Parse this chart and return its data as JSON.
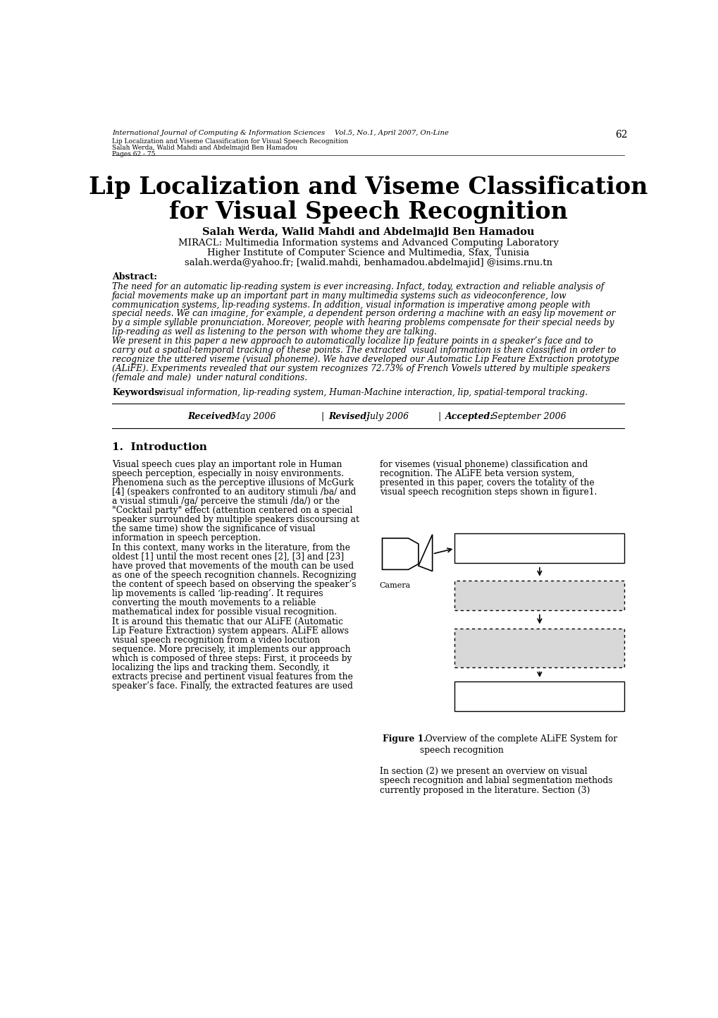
{
  "page_width": 10.2,
  "page_height": 14.43,
  "bg_color": "#ffffff",
  "header_journal": "International Journal of Computing & Information Sciences",
  "header_vol": "Vol.5, No.1, April 2007, On-Line",
  "header_page": "62",
  "header_subtitle1": "Lip Localization and Viseme Classification for Visual Speech Recognition",
  "header_subtitle2": "Salah Werda, Walid Mahdi and Abdelmajid Ben Hamadou",
  "header_pages": "Pages 62 - 75",
  "main_title_line1": "Lip Localization and Viseme Classification",
  "main_title_line2": "for Visual Speech Recognition",
  "authors": "Salah Werda, Walid Mahdi and Abdelmajid Ben Hamadou",
  "affil1": "MIRACL: Multimedia Information systems and Advanced Computing Laboratory",
  "affil2": "Higher Institute of Computer Science and Multimedia, Sfax, Tunisia",
  "affil3": "salah.werda@yahoo.fr; [walid.mahdi, benhamadou.abdelmajid] @isims.rnu.tn",
  "abstract_label": "Abstract:",
  "abstract_lines": [
    "The need for an automatic lip-reading system is ever increasing. Infact, today, extraction and reliable analysis of",
    "facial movements make up an important part in many multimedia systems such as videoconference, low",
    "communication systems, lip-reading systems. In addition, visual information is imperative among people with",
    "special needs. We can imagine, for example, a dependent person ordering a machine with an easy lip movement or",
    "by a simple syllable pronunciation. Moreover, people with hearing problems compensate for their special needs by",
    "lip-reading as well as listening to the person with whome they are talking.",
    "We present in this paper a new approach to automatically localize lip feature points in a speaker’s face and to",
    "carry out a spatial-temporal tracking of these points. The extracted  visual information is then classified in order to",
    "recognize the uttered viseme (visual phoneme). We have developed our Automatic Lip Feature Extraction prototype",
    "(ALiFE). Experiments revealed that our system recognizes 72.73% of French Vowels uttered by multiple speakers",
    "(female and male)  under natural conditions."
  ],
  "keywords_label": "Keywords:",
  "keywords_text": " visual information, lip-reading system, Human-Machine interaction, lip, spatial-temporal tracking.",
  "received_label": "Received:",
  "received_val": " May 2006",
  "revised_label": "Revised:",
  "revised_val": " July 2006",
  "accepted_label": "Accepted:",
  "accepted_val": " September 2006",
  "section1_title": "1.  Introduction",
  "col1_lines": [
    "Visual speech cues play an important role in Human",
    "speech perception, especially in noisy environments.",
    "Phenomena such as the perceptive illusions of McGurk",
    "[4] (speakers confronted to an auditory stimuli /ba/ and",
    "a visual stimuli /ga/ perceive the stimuli /da/) or the",
    "\"Cocktail party\" effect (attention centered on a special",
    "speaker surrounded by multiple speakers discoursing at",
    "the same time) show the significance of visual",
    "information in speech perception.",
    "In this context, many works in the literature, from the",
    "oldest [1] until the most recent ones [2], [3] and [23]",
    "have proved that movements of the mouth can be used",
    "as one of the speech recognition channels. Recognizing",
    "the content of speech based on observing the speaker’s",
    "lip movements is called ‘lip-reading’. It requires",
    "converting the mouth movements to a reliable",
    "mathematical index for possible visual recognition.",
    "It is around this thematic that our ALiFE (Automatic",
    "Lip Feature Extraction) system appears. ALiFE allows",
    "visual speech recognition from a video locution",
    "sequence. More precisely, it implements our approach",
    "which is composed of three steps: First, it proceeds by",
    "localizing the lips and tracking them. Secondly, it",
    "extracts precise and pertinent visual features from the",
    "speaker’s face. Finally, the extracted features are used"
  ],
  "col2_lines_top": [
    "for visemes (visual phoneme) classification and",
    "recognition. The ALiFE beta version system,",
    "presented in this paper, covers the totality of the",
    "visual speech recognition steps shown in figure1."
  ],
  "col2_lines_bottom": [
    "In section (2) we present an overview on visual",
    "speech recognition and labial segmentation methods",
    "currently proposed in the literature. Section (3)"
  ],
  "camera_label": "Camera",
  "fig_caption_bold": "Figure 1.",
  "fig_caption_rest": "  Overview of the complete ALiFE System for",
  "fig_caption_line2": "speech recognition"
}
